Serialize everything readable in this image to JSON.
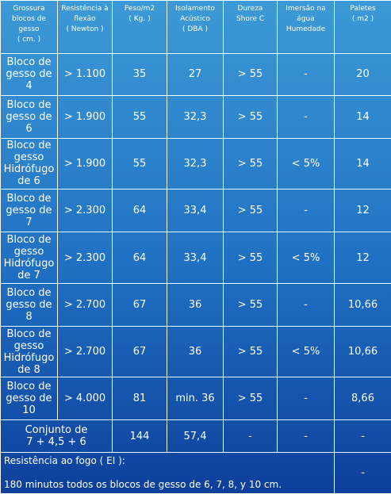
{
  "headers": [
    [
      "Grossura",
      "blocos de",
      "gesso",
      "( cm. )"
    ],
    [
      "Resistência à",
      "flexão",
      "( Newton )"
    ],
    [
      "Peso/m2",
      "( Kg. )"
    ],
    [
      "Isolamento",
      "Acústico",
      "( DBA )"
    ],
    [
      "Dureza",
      "Shore C"
    ],
    [
      "Imersão na",
      "água",
      "Humedade"
    ],
    [
      "Paletes",
      "( m2 )"
    ]
  ],
  "rows": [
    {
      "label": [
        "Bloco de",
        "gesso de",
        "4"
      ],
      "values": [
        "> 1.100",
        "35",
        "27",
        "> 55",
        "-",
        "20"
      ]
    },
    {
      "label": [
        "Bloco de",
        "gesso de",
        "6"
      ],
      "values": [
        "> 1.900",
        "55",
        "32,3",
        "> 55",
        "-",
        "14"
      ]
    },
    {
      "label": [
        "Bloco de",
        "gesso",
        "Hidrófugo",
        "de 6"
      ],
      "values": [
        "> 1.900",
        "55",
        "32,3",
        "> 55",
        "< 5%",
        "14"
      ]
    },
    {
      "label": [
        "Bloco de",
        "gesso de",
        "7"
      ],
      "values": [
        "> 2.300",
        "64",
        "33,4",
        "> 55",
        "-",
        "12"
      ]
    },
    {
      "label": [
        "Bloco de",
        "gesso",
        "Hidrófugo",
        "de 7"
      ],
      "values": [
        "> 2.300",
        "64",
        "33,4",
        "> 55",
        "< 5%",
        "12"
      ]
    },
    {
      "label": [
        "Bloco de",
        "gesso de",
        "8"
      ],
      "values": [
        "> 2.700",
        "67",
        "36",
        "> 55",
        "-",
        "10,66"
      ]
    },
    {
      "label": [
        "Bloco de",
        "gesso",
        "Hidrófugo",
        "de 8"
      ],
      "values": [
        "> 2.700",
        "67",
        "36",
        "> 55",
        "< 5%",
        "10,66"
      ]
    },
    {
      "label": [
        "Bloco de",
        "gesso de",
        "10"
      ],
      "values": [
        "> 4.000",
        "81",
        "min. 36",
        "> 55",
        "-",
        "8,66"
      ]
    }
  ],
  "combined_row": {
    "label": [
      "Conjunto de",
      "7 + 4,5 + 6"
    ],
    "values": [
      "144",
      "57,4",
      "-",
      "-",
      "-"
    ]
  },
  "footer": {
    "line1": "Resistência ao fogo ( EI ):",
    "line2": "180 minutos todos os blocos de gesso de 6, 7, 8, y 10 cm.",
    "last_value": "-"
  }
}
